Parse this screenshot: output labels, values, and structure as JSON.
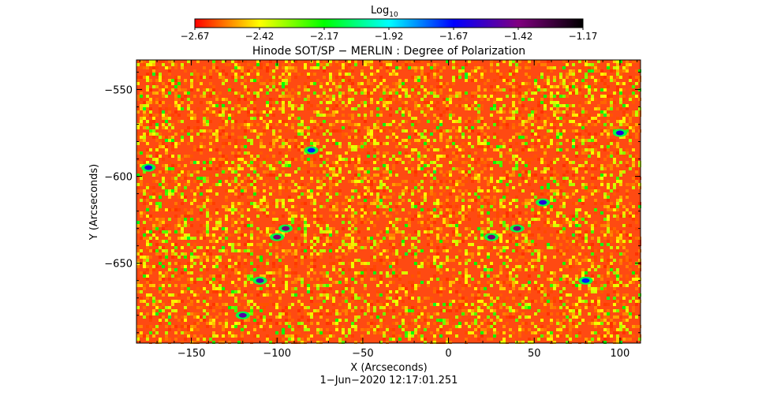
{
  "chart_data": {
    "type": "heatmap",
    "title": "Hinode SOT/SP − MERLIN : Degree of Polarization",
    "xlabel": "X (Arcseconds)",
    "ylabel": "Y (Arcseconds)",
    "timestamp": "1−Jun−2020 12:17:01.251",
    "xlim": [
      -182,
      112
    ],
    "ylim": [
      -696,
      -533
    ],
    "x_ticks": [
      -150,
      -100,
      -50,
      0,
      50,
      100
    ],
    "x_tick_labels": [
      "−150",
      "−100",
      "−50",
      "0",
      "50",
      "100"
    ],
    "y_ticks": [
      -550,
      -600,
      -650
    ],
    "y_tick_labels": [
      "−550",
      "−600",
      "−650"
    ],
    "colorbar": {
      "label": "Log",
      "label_sub": "10",
      "range": [
        -2.67,
        -1.17
      ],
      "ticks": [
        -2.67,
        -2.42,
        -2.17,
        -1.92,
        -1.67,
        -1.42,
        -1.17
      ],
      "tick_labels": [
        "−2.67",
        "−2.42",
        "−2.17",
        "−1.92",
        "−1.67",
        "−1.42",
        "−1.17"
      ],
      "colormap_stops": [
        "#ff0000",
        "#ffff00",
        "#00ff00",
        "#00ffff",
        "#0000ff",
        "#800080",
        "#000000"
      ]
    },
    "field_description_values": {
      "background_level": -2.62,
      "highlight_level": -2.2,
      "patches": [
        {
          "x": -120,
          "y": -680,
          "level": -1.5
        },
        {
          "x": -110,
          "y": -660,
          "level": -1.5
        },
        {
          "x": -100,
          "y": -635,
          "level": -1.4
        },
        {
          "x": -95,
          "y": -630,
          "level": -1.4
        },
        {
          "x": -175,
          "y": -595,
          "level": -1.6
        },
        {
          "x": -80,
          "y": -585,
          "level": -1.7
        },
        {
          "x": 25,
          "y": -635,
          "level": -1.4
        },
        {
          "x": 40,
          "y": -630,
          "level": -1.4
        },
        {
          "x": 55,
          "y": -615,
          "level": -1.6
        },
        {
          "x": 80,
          "y": -660,
          "level": -1.7
        },
        {
          "x": 100,
          "y": -575,
          "level": -1.6
        }
      ]
    }
  }
}
